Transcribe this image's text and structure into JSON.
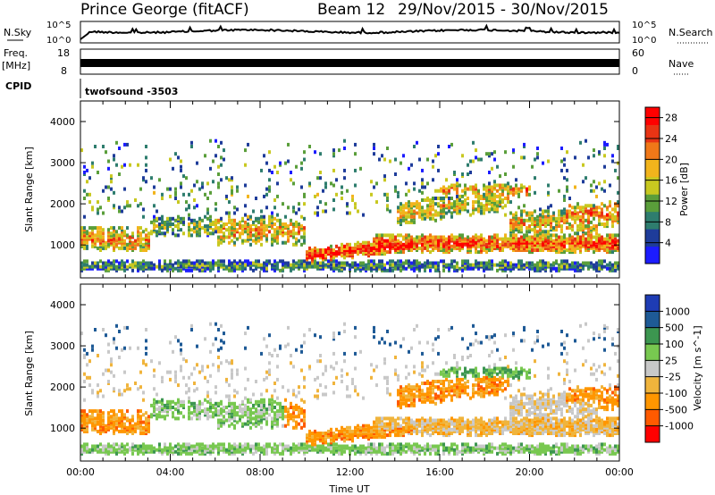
{
  "header": {
    "station": "Prince George (fitACF)",
    "beam": "Beam 12",
    "dates": "29/Nov/2015 - 30/Nov/2015"
  },
  "strips": {
    "nsky_label": "N.Sky",
    "nsearch_label": "N.Search",
    "nsky_ticks": [
      "10^5",
      "10^0"
    ],
    "nsky_ticks_right": [
      "10^5",
      "10^0"
    ],
    "freq_label": "Freq.",
    "freq_unit": "[MHz]",
    "freq_ticks": [
      "18",
      "8"
    ],
    "nave_label": "Nave",
    "nave_ticks": [
      "60",
      "0"
    ],
    "cpid_label": "CPID",
    "cpid_value": "twofsound -3503"
  },
  "colors": {
    "power": [
      "#1c1cff",
      "#1e3c9a",
      "#2e7d6e",
      "#5a9e3a",
      "#c8c820",
      "#f2b41c",
      "#f07818",
      "#e83414",
      "#ff0000"
    ],
    "velocity": [
      "#ff0000",
      "#ff5a00",
      "#ff9600",
      "#f0b43c",
      "#c8c8c8",
      "#78c850",
      "#3c9650",
      "#1e5a96",
      "#1e3cb4"
    ]
  },
  "chart_data": [
    {
      "type": "heatmap",
      "name": "power-panel",
      "xlabel": "",
      "ylabel": "Slant Range [km]",
      "xlim": [
        "00:00",
        "24:00"
      ],
      "ylim": [
        200,
        4500
      ],
      "y_ticks": [
        "1000",
        "2000",
        "3000",
        "4000"
      ],
      "colorbar_label": "Power [dB]",
      "colorbar_ticks": [
        "4",
        "8",
        "12",
        "16",
        "20",
        "24",
        "28"
      ],
      "colorbar_range": [
        0,
        30
      ]
    },
    {
      "type": "heatmap",
      "name": "velocity-panel",
      "xlabel": "Time UT",
      "ylabel": "Slant Range [km]",
      "x_ticks": [
        "00:00",
        "04:00",
        "08:00",
        "12:00",
        "16:00",
        "20:00",
        "00:00"
      ],
      "ylim": [
        200,
        4500
      ],
      "y_ticks": [
        "1000",
        "2000",
        "3000",
        "4000"
      ],
      "colorbar_label": "Velocity [m s^-1]",
      "colorbar_ticks": [
        "-1000",
        "-500",
        "-100",
        "-25",
        "25",
        "100",
        "500",
        "1000"
      ]
    }
  ]
}
